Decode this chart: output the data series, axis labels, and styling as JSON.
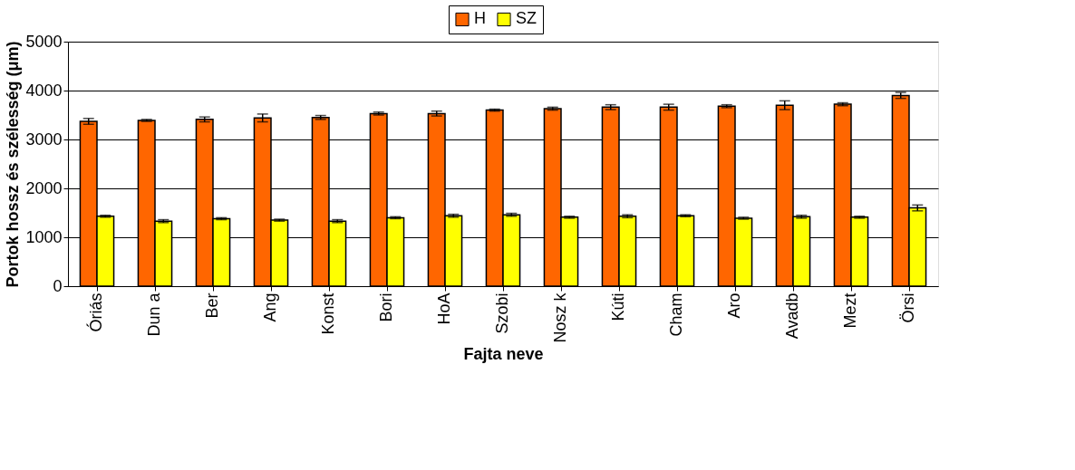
{
  "chart_data": {
    "type": "bar",
    "xlabel": "Fajta neve",
    "ylabel": "Portok hossz és szélesség (μm)",
    "categories": [
      "Óriás",
      "Dun a",
      "Ber",
      "Ang",
      "Konst",
      "Bori",
      "HoA",
      "Szobi",
      "Nosz k",
      "Kúti",
      "Cham",
      "Aro",
      "Avadb",
      "Mezt",
      "Örsi"
    ],
    "series": [
      {
        "name": "H",
        "color": "#ff6600",
        "values": [
          3370,
          3390,
          3410,
          3440,
          3450,
          3530,
          3530,
          3600,
          3630,
          3660,
          3660,
          3680,
          3700,
          3720,
          3900
        ],
        "errors": [
          60,
          20,
          50,
          80,
          40,
          30,
          50,
          20,
          30,
          50,
          60,
          30,
          90,
          30,
          60
        ]
      },
      {
        "name": "SZ",
        "color": "#ffff00",
        "values": [
          1430,
          1330,
          1380,
          1350,
          1330,
          1400,
          1440,
          1460,
          1410,
          1430,
          1440,
          1390,
          1420,
          1410,
          1600
        ],
        "errors": [
          20,
          30,
          20,
          20,
          30,
          20,
          30,
          30,
          20,
          30,
          20,
          20,
          30,
          20,
          60
        ]
      }
    ],
    "ylim": [
      0,
      5000
    ],
    "yticks": [
      0,
      1000,
      2000,
      3000,
      4000,
      5000
    ],
    "grid": "y",
    "legend": "top"
  }
}
